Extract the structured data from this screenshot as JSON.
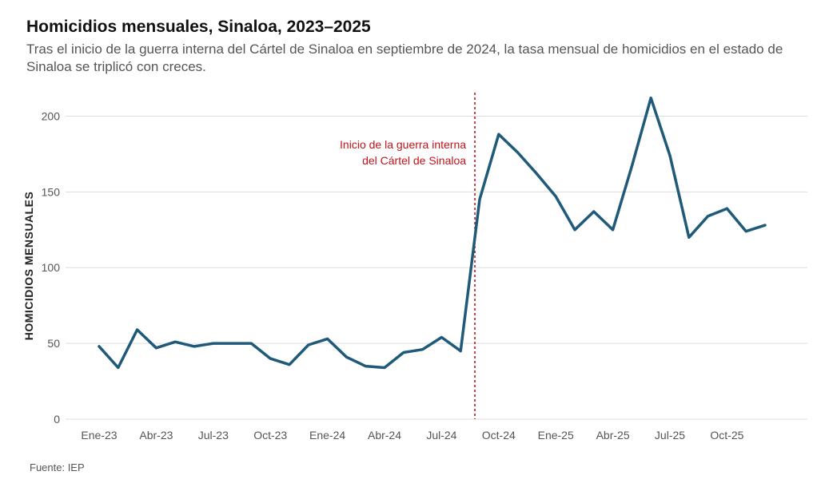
{
  "title": "Homicidios mensuales, Sinaloa, 2023–2025",
  "subtitle": "Tras el inicio de la guerra interna del Cártel de Sinaloa en septiembre de 2024, la tasa mensual de homicidios en el estado de Sinaloa se triplicó con creces.",
  "source": "Fuente: IEP",
  "colors": {
    "line": "#1f5a7a",
    "annotation": "#c0141a",
    "grid": "#dddddd"
  },
  "chart_data": {
    "type": "line",
    "title": "Homicidios mensuales, Sinaloa, 2023–2025",
    "ylabel": "HOMICIDIOS MENSUALES",
    "xlabel": "",
    "ylim": [
      0,
      220
    ],
    "yticks": [
      0,
      50,
      100,
      150,
      200
    ],
    "grid": true,
    "x": [
      "Ene-23",
      "Feb-23",
      "Mar-23",
      "Abr-23",
      "May-23",
      "Jun-23",
      "Jul-23",
      "Ago-23",
      "Sep-23",
      "Oct-23",
      "Nov-23",
      "Dic-23",
      "Ene-24",
      "Feb-24",
      "Mar-24",
      "Abr-24",
      "May-24",
      "Jun-24",
      "Jul-24",
      "Ago-24",
      "Sep-24",
      "Oct-24",
      "Nov-24",
      "Dic-24",
      "Ene-25",
      "Feb-25",
      "Mar-25",
      "Abr-25",
      "May-25",
      "Jun-25",
      "Jul-25",
      "Ago-25",
      "Sep-25",
      "Oct-25",
      "Nov-25",
      "Dic-25"
    ],
    "xticks": [
      "Ene-23",
      "Abr-23",
      "Jul-23",
      "Oct-23",
      "Ene-24",
      "Abr-24",
      "Jul-24",
      "Oct-24",
      "Ene-25",
      "Abr-25",
      "Jul-25",
      "Oct-25"
    ],
    "series": [
      {
        "values": [
          48,
          34,
          59,
          47,
          51,
          48,
          50,
          50,
          50,
          40,
          36,
          49,
          53,
          41,
          35,
          34,
          44,
          46,
          54,
          45,
          145,
          188,
          176,
          162,
          147,
          125,
          137,
          125,
          167,
          212,
          174,
          120,
          134,
          139,
          124,
          128
        ]
      }
    ],
    "annotation": {
      "text_lines": [
        "Inicio de la guerra interna",
        "del Cártel de Sinaloa"
      ],
      "x": 19.75
    }
  }
}
